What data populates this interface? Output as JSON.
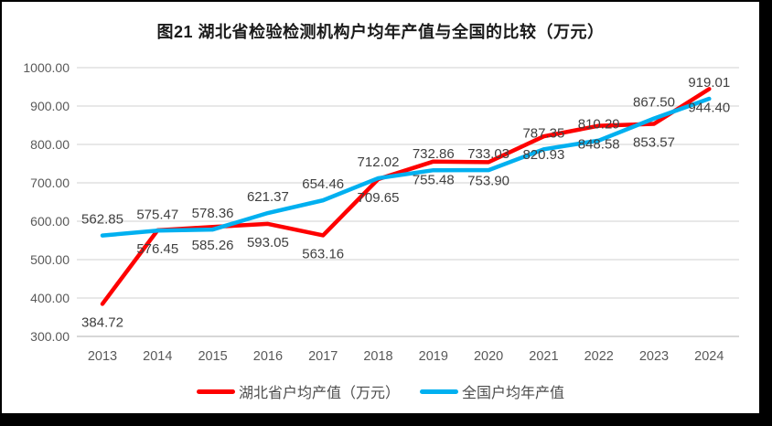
{
  "title": "图21 湖北省检验检测机构户均年产值与全国的比较（万元）",
  "frame": {
    "background": "#ffffff",
    "border_color": "#000000"
  },
  "chart_data": {
    "type": "line",
    "title": "图21 湖北省检验检测机构户均年产值与全国的比较（万元）",
    "categories": [
      "2013",
      "2014",
      "2015",
      "2016",
      "2017",
      "2018",
      "2019",
      "2020",
      "2021",
      "2022",
      "2023",
      "2024"
    ],
    "series": [
      {
        "name": "湖北省户均产值（万元）",
        "color": "#fe0000",
        "label_position": "below",
        "values": [
          384.72,
          576.45,
          585.26,
          593.05,
          563.16,
          709.65,
          755.48,
          753.9,
          820.93,
          848.58,
          853.57,
          944.4
        ]
      },
      {
        "name": "全国户均年产值",
        "color": "#00b0f0",
        "label_position": "above",
        "values": [
          562.85,
          575.47,
          578.36,
          621.37,
          654.46,
          712.02,
          732.86,
          733.03,
          787.35,
          810.29,
          867.5,
          919.01
        ]
      }
    ],
    "ylim": [
      300,
      1000
    ],
    "ytick_step": 100,
    "ytick_decimals": 2,
    "value_label_decimals": 2,
    "grid": true,
    "legend_position": "bottom",
    "styles": {
      "grid_color": "#d9d9d9",
      "axis_line_color": "#bfbfbf",
      "tick_text_color": "#595959",
      "value_label_color": "#404040",
      "line_width": 4.5
    }
  }
}
